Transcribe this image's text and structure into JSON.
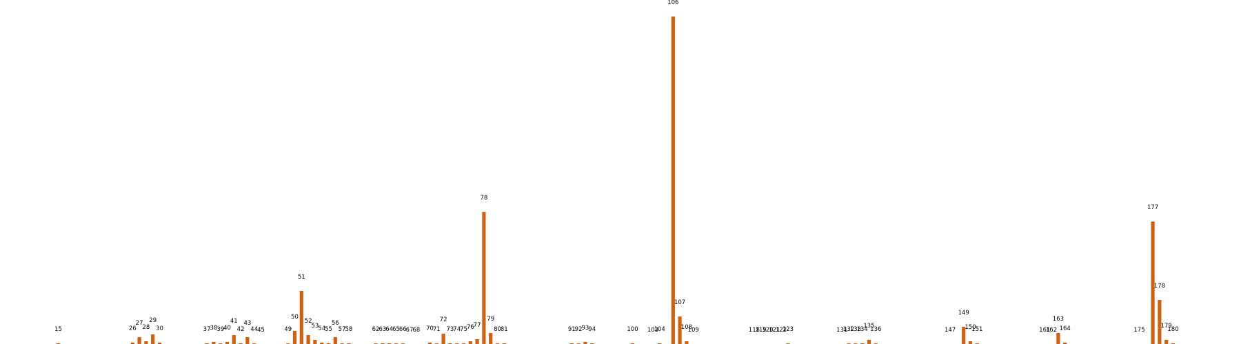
{
  "chart_data": {
    "type": "bar",
    "colors": {
      "bar": "#d2600e"
    },
    "categories": [
      15,
      26,
      27,
      28,
      29,
      30,
      37,
      38,
      39,
      40,
      41,
      42,
      43,
      44,
      45,
      49,
      50,
      51,
      52,
      53,
      54,
      55,
      56,
      57,
      58,
      62,
      63,
      64,
      65,
      66,
      67,
      68,
      70,
      71,
      72,
      73,
      74,
      75,
      76,
      77,
      78,
      79,
      80,
      81,
      91,
      92,
      93,
      94,
      100,
      103,
      104,
      106,
      107,
      108,
      109,
      118,
      119,
      120,
      121,
      122,
      123,
      131,
      132,
      133,
      134,
      135,
      136,
      147,
      149,
      150,
      151,
      161,
      162,
      163,
      164,
      175,
      177,
      178,
      179,
      180
    ],
    "values": [
      1,
      2,
      10,
      4,
      14,
      2,
      1,
      3,
      1,
      3,
      13,
      1,
      10,
      1,
      0,
      1,
      19,
      77,
      13,
      6,
      2,
      1,
      10,
      1,
      1,
      1,
      1,
      1,
      1,
      1,
      0,
      0,
      2,
      1,
      15,
      1,
      1,
      1,
      4,
      7,
      192,
      16,
      1,
      1,
      1,
      1,
      3,
      1,
      1,
      0,
      1,
      476,
      40,
      4,
      0,
      0,
      0,
      0,
      0,
      0,
      1,
      0,
      1,
      1,
      1,
      6,
      1,
      0,
      25,
      4,
      1,
      0,
      0,
      16,
      2,
      0,
      178,
      64,
      6,
      1
    ],
    "title": "",
    "xlabel": "",
    "ylabel": "",
    "grid": false,
    "show_axes": false
  }
}
